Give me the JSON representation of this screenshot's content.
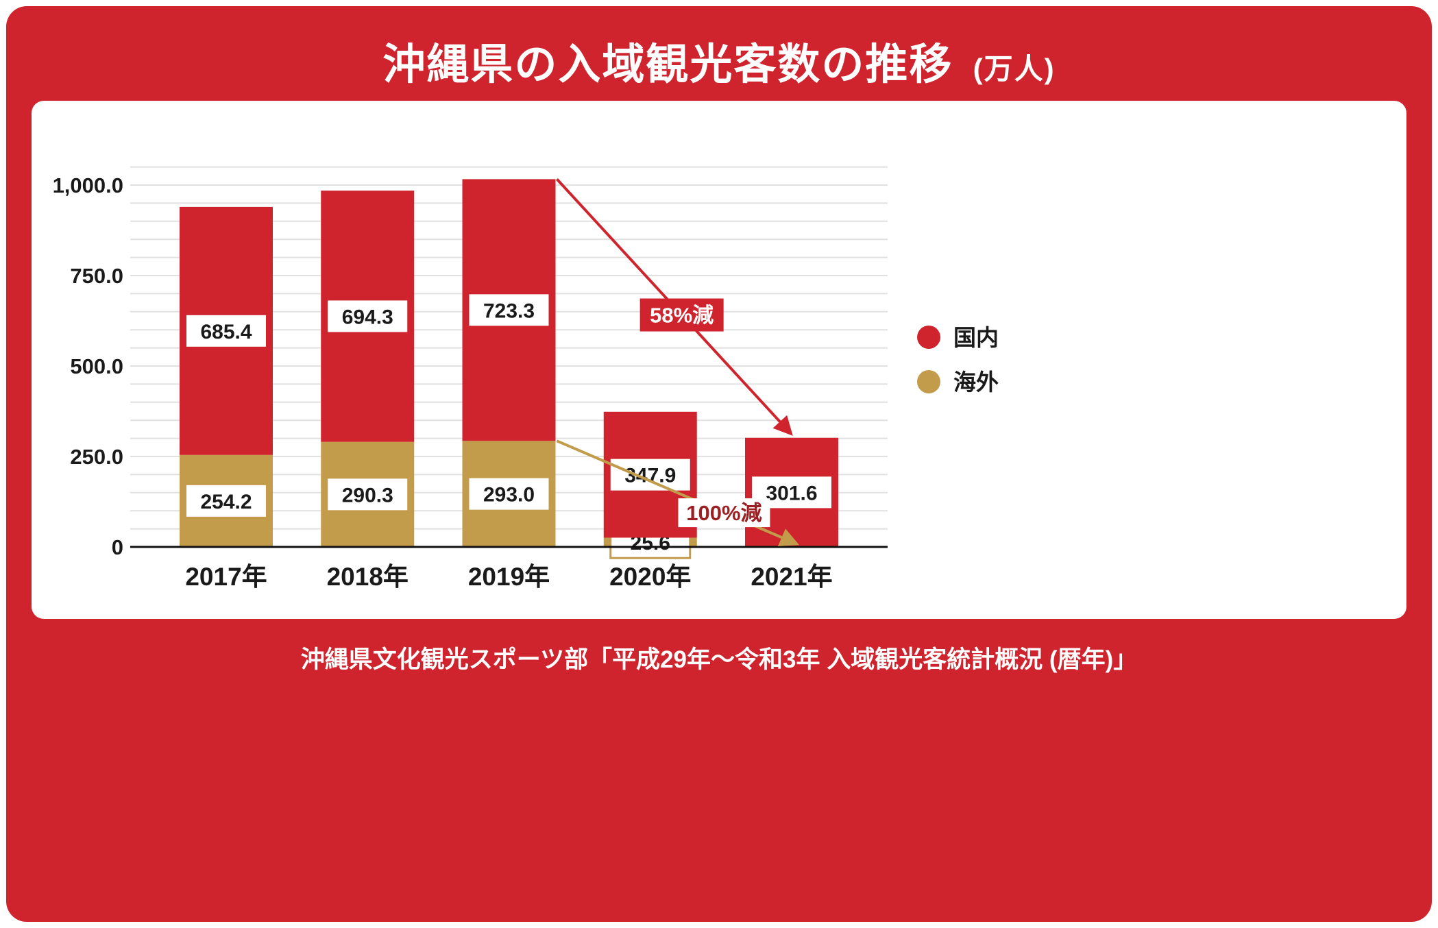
{
  "page": {
    "title": "沖縄県の入域観光客数の推移",
    "title_unit": "(万人)",
    "source": "沖縄県文化観光スポーツ部「平成29年〜令和3年 入域観光客統計概況 (暦年)」"
  },
  "colors": {
    "frame_red": "#cf232d",
    "domestic_red": "#cf232d",
    "overseas_gold": "#c29b4b",
    "grid_gray": "#e1e1e1",
    "axis_black": "#111111",
    "text_dark": "#1a1a1a",
    "annotation_dark_red": "#9c1f23",
    "white": "#ffffff"
  },
  "legend": [
    {
      "label": "国内",
      "color": "#cf232d"
    },
    {
      "label": "海外",
      "color": "#c29b4b"
    }
  ],
  "annotations": [
    {
      "id": "domestic-drop",
      "text": "58%減",
      "from_category": "2019年",
      "from_value": 1016.3,
      "to_category": "2021年",
      "to_value": 301.6,
      "arrow_color": "#cf232d",
      "label_bg": "#cf232d",
      "label_text_color": "#ffffff"
    },
    {
      "id": "overseas-drop",
      "text": "100%減",
      "from_category": "2019年",
      "from_value": 293.0,
      "to_category": "2021年",
      "to_value": 0,
      "arrow_color": "#c29b4b",
      "label_bg": "#ffffff",
      "label_text_color": "#9c1f23"
    }
  ],
  "chart_data": {
    "type": "bar",
    "stacked": true,
    "title": "沖縄県の入域観光客数の推移 (万人)",
    "categories": [
      "2017年",
      "2018年",
      "2019年",
      "2020年",
      "2021年"
    ],
    "series": [
      {
        "name": "海外",
        "key": "overseas",
        "color": "#c29b4b",
        "values": [
          254.2,
          290.3,
          293.0,
          25.6,
          0
        ]
      },
      {
        "name": "国内",
        "key": "domestic",
        "color": "#cf232d",
        "values": [
          685.4,
          694.3,
          723.3,
          347.9,
          301.6
        ]
      }
    ],
    "totals": [
      939.6,
      984.6,
      1016.3,
      373.5,
      301.6
    ],
    "xlabel": "",
    "ylabel": "",
    "ylim": [
      0,
      1050
    ],
    "grid": true,
    "grid_step": 50,
    "yticks": [
      0,
      250,
      500,
      750,
      1000
    ],
    "ytick_labels": [
      "0",
      "250.0",
      "500.0",
      "750.0",
      "1,000.0"
    ],
    "legend_position": "right"
  }
}
